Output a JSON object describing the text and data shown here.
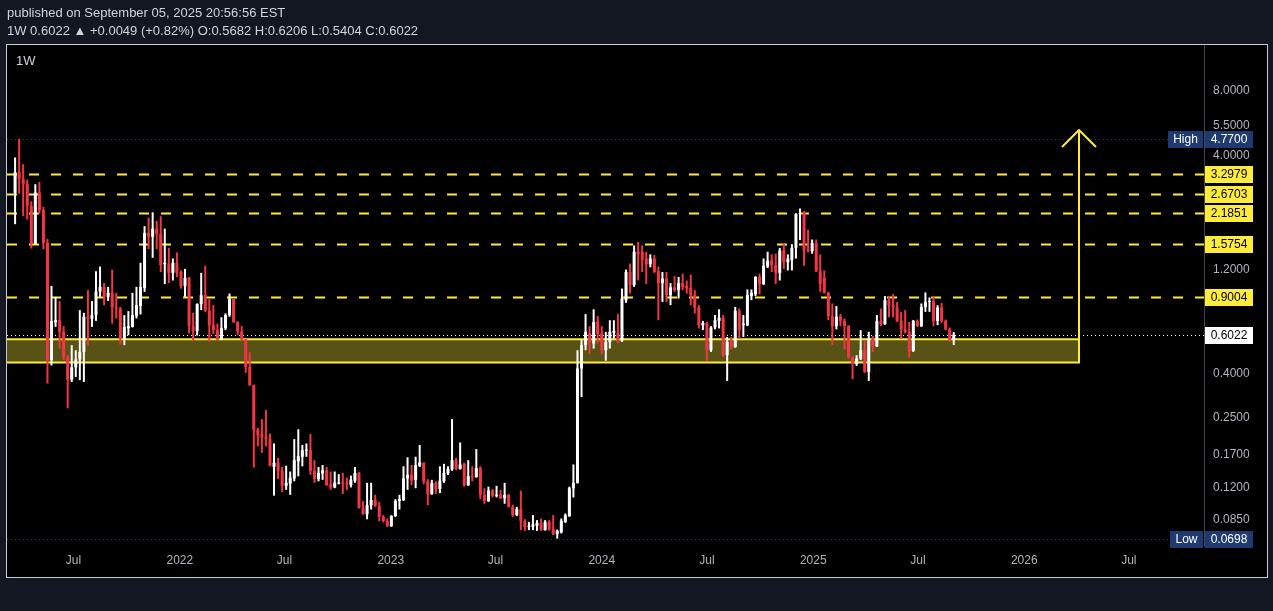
{
  "chart_data": {
    "type": "candlestick",
    "title": "1W",
    "subtitle": "1W 0.6022 ▲ +0.0049 (+0.82%) O:0.5682 H:0.6206 L:0.5404 C:0.6022",
    "annotations": [
      "published on September 05, 2025 20:56:56 EST",
      {
        "text": "High",
        "y": 4.77
      },
      {
        "text": "Low",
        "y": 0.0698
      }
    ],
    "x": [
      "2021-03-22",
      "2021-03-29",
      "2021-04-05",
      "2021-04-12",
      "2021-04-19",
      "2021-04-26",
      "2021-05-03",
      "2021-05-10",
      "2021-05-17",
      "2021-05-24",
      "2021-05-31",
      "2021-06-07",
      "2021-06-14",
      "2021-06-21",
      "2021-06-28",
      "2021-07-05",
      "2021-07-12",
      "2021-07-19",
      "2021-07-26",
      "2021-08-02",
      "2021-08-09",
      "2021-08-16",
      "2021-08-23",
      "2021-08-30",
      "2021-09-06",
      "2021-09-13",
      "2021-09-20",
      "2021-09-27",
      "2021-10-04",
      "2021-10-11",
      "2021-10-18",
      "2021-10-25",
      "2021-11-01",
      "2021-11-08",
      "2021-11-15",
      "2021-11-22",
      "2021-11-29",
      "2021-12-06",
      "2021-12-13",
      "2021-12-20",
      "2021-12-27",
      "2022-01-03",
      "2022-01-10",
      "2022-01-17",
      "2022-01-24",
      "2022-01-31",
      "2022-02-07",
      "2022-02-14",
      "2022-02-21",
      "2022-02-28",
      "2022-03-07",
      "2022-03-14",
      "2022-03-21",
      "2022-03-28",
      "2022-04-04",
      "2022-04-11",
      "2022-04-18",
      "2022-04-25",
      "2022-05-02",
      "2022-05-09",
      "2022-05-16",
      "2022-05-23",
      "2022-05-30",
      "2022-06-06",
      "2022-06-13",
      "2022-06-20",
      "2022-06-27",
      "2022-07-04",
      "2022-07-11",
      "2022-07-18",
      "2022-07-25",
      "2022-08-01",
      "2022-08-08",
      "2022-08-15",
      "2022-08-22",
      "2022-08-29",
      "2022-09-05",
      "2022-09-12",
      "2022-09-19",
      "2022-09-26",
      "2022-10-03",
      "2022-10-10",
      "2022-10-17",
      "2022-10-24",
      "2022-10-31",
      "2022-11-07",
      "2022-11-14",
      "2022-11-21",
      "2022-11-28",
      "2022-12-05",
      "2022-12-12",
      "2022-12-19",
      "2022-12-26",
      "2023-01-02",
      "2023-01-09",
      "2023-01-16",
      "2023-01-23",
      "2023-01-30",
      "2023-02-06",
      "2023-02-13",
      "2023-02-20",
      "2023-02-27",
      "2023-03-06",
      "2023-03-13",
      "2023-03-20",
      "2023-03-27",
      "2023-04-03",
      "2023-04-10",
      "2023-04-17",
      "2023-04-24",
      "2023-05-01",
      "2023-05-08",
      "2023-05-15",
      "2023-05-22",
      "2023-05-29",
      "2023-06-05",
      "2023-06-12",
      "2023-06-19",
      "2023-06-26",
      "2023-07-03",
      "2023-07-10",
      "2023-07-17",
      "2023-07-24",
      "2023-07-31",
      "2023-08-07",
      "2023-08-14",
      "2023-08-21",
      "2023-08-28",
      "2023-09-04",
      "2023-09-11",
      "2023-09-18",
      "2023-09-25",
      "2023-10-02",
      "2023-10-09",
      "2023-10-16",
      "2023-10-23",
      "2023-10-30",
      "2023-11-06",
      "2023-11-13",
      "2023-11-20",
      "2023-11-27",
      "2023-12-04",
      "2023-12-11",
      "2023-12-18",
      "2023-12-25",
      "2024-01-01",
      "2024-01-08",
      "2024-01-15",
      "2024-01-22",
      "2024-01-29",
      "2024-02-05",
      "2024-02-12",
      "2024-02-19",
      "2024-02-26",
      "2024-03-04",
      "2024-03-11",
      "2024-03-18",
      "2024-03-25",
      "2024-04-01",
      "2024-04-08",
      "2024-04-15",
      "2024-04-22",
      "2024-04-29",
      "2024-05-06",
      "2024-05-13",
      "2024-05-20",
      "2024-05-27",
      "2024-06-03",
      "2024-06-10",
      "2024-06-17",
      "2024-06-24",
      "2024-07-01",
      "2024-07-08",
      "2024-07-15",
      "2024-07-22",
      "2024-07-29",
      "2024-08-05",
      "2024-08-12",
      "2024-08-19",
      "2024-08-26",
      "2024-09-02",
      "2024-09-09",
      "2024-09-16",
      "2024-09-23",
      "2024-09-30",
      "2024-10-07",
      "2024-10-14",
      "2024-10-21",
      "2024-10-28",
      "2024-11-04",
      "2024-11-11",
      "2024-11-18",
      "2024-11-25",
      "2024-12-02",
      "2024-12-09",
      "2024-12-16",
      "2024-12-23",
      "2024-12-30",
      "2025-01-06",
      "2025-01-13",
      "2025-01-20",
      "2025-01-27",
      "2025-02-03",
      "2025-02-10",
      "2025-02-17",
      "2025-02-24",
      "2025-03-03",
      "2025-03-10",
      "2025-03-17",
      "2025-03-24",
      "2025-03-31",
      "2025-04-07",
      "2025-04-14",
      "2025-04-21",
      "2025-04-28",
      "2025-05-05",
      "2025-05-12",
      "2025-05-19",
      "2025-05-26",
      "2025-06-02",
      "2025-06-09",
      "2025-06-16",
      "2025-06-23",
      "2025-06-30",
      "2025-07-07",
      "2025-07-14",
      "2025-07-21",
      "2025-07-28",
      "2025-08-04",
      "2025-08-11",
      "2025-08-18",
      "2025-08-25",
      "2025-09-01"
    ],
    "ohlc": [
      [
        2.7,
        3.93,
        1.94,
        3.36
      ],
      [
        3.36,
        4.77,
        2.68,
        3.13
      ],
      [
        3.13,
        3.66,
        2.11,
        2.96
      ],
      [
        2.96,
        3.11,
        2.04,
        2.35
      ],
      [
        2.35,
        2.47,
        1.5,
        1.58
      ],
      [
        1.58,
        2.96,
        1.57,
        2.71
      ],
      [
        2.71,
        3.03,
        2.17,
        2.25
      ],
      [
        2.25,
        2.33,
        1.49,
        1.59
      ],
      [
        1.59,
        1.66,
        0.36,
        0.461
      ],
      [
        0.461,
        1.01,
        0.436,
        0.696
      ],
      [
        0.688,
        0.9,
        0.655,
        0.703
      ],
      [
        0.703,
        0.86,
        0.521,
        0.622
      ],
      [
        0.622,
        0.66,
        0.461,
        0.477
      ],
      [
        0.477,
        0.486,
        0.277,
        0.375
      ],
      [
        0.375,
        0.54,
        0.366,
        0.427
      ],
      [
        0.427,
        0.512,
        0.386,
        0.464
      ],
      [
        0.464,
        0.782,
        0.373,
        0.503
      ],
      [
        0.503,
        0.76,
        0.366,
        0.729
      ],
      [
        0.729,
        0.966,
        0.54,
        0.713
      ],
      [
        0.713,
        0.86,
        0.655,
        0.742
      ],
      [
        0.742,
        1.18,
        0.698,
        0.952
      ],
      [
        0.952,
        1.24,
        0.9,
        1.0
      ],
      [
        1.0,
        1.04,
        0.824,
        0.9
      ],
      [
        0.9,
        1.0,
        0.862,
        0.939
      ],
      [
        0.939,
        1.2,
        0.678,
        0.804
      ],
      [
        0.804,
        0.939,
        0.716,
        0.795
      ],
      [
        0.795,
        0.809,
        0.543,
        0.579
      ],
      [
        0.579,
        0.742,
        0.54,
        0.655
      ],
      [
        0.646,
        0.774,
        0.6,
        0.66
      ],
      [
        0.655,
        0.939,
        0.651,
        0.742
      ],
      [
        0.737,
        1.0,
        0.716,
        0.824
      ],
      [
        0.818,
        1.29,
        0.747,
        1.0
      ],
      [
        0.989,
        1.9,
        0.949,
        1.77
      ],
      [
        1.77,
        2.08,
        1.49,
        1.7
      ],
      [
        1.7,
        2.2,
        1.36,
        1.85
      ],
      [
        1.85,
        2.01,
        1.49,
        1.75
      ],
      [
        1.75,
        2.11,
        1.17,
        1.26
      ],
      [
        1.27,
        1.85,
        1.03,
        1.29
      ],
      [
        1.27,
        1.51,
        1.04,
        1.16
      ],
      [
        1.16,
        1.35,
        1.07,
        1.29
      ],
      [
        1.29,
        1.44,
        1.11,
        1.16
      ],
      [
        1.17,
        1.19,
        0.982,
        1.01
      ],
      [
        1.01,
        1.21,
        0.9,
        1.1
      ],
      [
        1.1,
        1.11,
        0.611,
        0.66
      ],
      [
        0.66,
        0.76,
        0.565,
        0.626
      ],
      [
        0.626,
        0.84,
        0.598,
        0.833
      ],
      [
        0.833,
        1.16,
        0.782,
        0.916
      ],
      [
        0.916,
        1.25,
        0.766,
        0.777
      ],
      [
        0.777,
        0.878,
        0.559,
        0.667
      ],
      [
        0.667,
        0.824,
        0.606,
        0.633
      ],
      [
        0.633,
        0.678,
        0.569,
        0.573
      ],
      [
        0.573,
        0.726,
        0.569,
        0.646
      ],
      [
        0.646,
        0.756,
        0.633,
        0.742
      ],
      [
        0.742,
        0.932,
        0.729,
        0.878
      ],
      [
        0.878,
        0.88,
        0.683,
        0.69
      ],
      [
        0.69,
        0.695,
        0.602,
        0.624
      ],
      [
        0.624,
        0.66,
        0.569,
        0.573
      ],
      [
        0.573,
        0.577,
        0.403,
        0.429
      ],
      [
        0.429,
        0.501,
        0.351,
        0.354
      ],
      [
        0.354,
        0.356,
        0.148,
        0.22
      ],
      [
        0.22,
        0.225,
        0.185,
        0.209
      ],
      [
        0.211,
        0.247,
        0.173,
        0.204
      ],
      [
        0.204,
        0.272,
        0.185,
        0.2
      ],
      [
        0.2,
        0.212,
        0.15,
        0.151
      ],
      [
        0.149,
        0.191,
        0.11,
        0.156
      ],
      [
        0.156,
        0.164,
        0.131,
        0.143
      ],
      [
        0.143,
        0.149,
        0.114,
        0.122
      ],
      [
        0.122,
        0.151,
        0.117,
        0.126
      ],
      [
        0.125,
        0.142,
        0.111,
        0.133
      ],
      [
        0.132,
        0.2,
        0.128,
        0.16
      ],
      [
        0.158,
        0.222,
        0.135,
        0.167
      ],
      [
        0.166,
        0.188,
        0.15,
        0.178
      ],
      [
        0.177,
        0.191,
        0.166,
        0.178
      ],
      [
        0.178,
        0.211,
        0.137,
        0.143
      ],
      [
        0.143,
        0.16,
        0.126,
        0.131
      ],
      [
        0.131,
        0.149,
        0.128,
        0.14
      ],
      [
        0.139,
        0.152,
        0.13,
        0.144
      ],
      [
        0.144,
        0.149,
        0.122,
        0.123
      ],
      [
        0.124,
        0.142,
        0.117,
        0.12
      ],
      [
        0.12,
        0.142,
        0.119,
        0.126
      ],
      [
        0.125,
        0.138,
        0.124,
        0.126
      ],
      [
        0.126,
        0.14,
        0.112,
        0.125
      ],
      [
        0.125,
        0.133,
        0.117,
        0.124
      ],
      [
        0.123,
        0.136,
        0.12,
        0.13
      ],
      [
        0.129,
        0.149,
        0.126,
        0.14
      ],
      [
        0.14,
        0.141,
        0.096,
        0.0967
      ],
      [
        0.0967,
        0.104,
        0.09,
        0.0904
      ],
      [
        0.0904,
        0.126,
        0.0857,
        0.0995
      ],
      [
        0.0995,
        0.126,
        0.095,
        0.105
      ],
      [
        0.105,
        0.111,
        0.0977,
        0.0985
      ],
      [
        0.0985,
        0.103,
        0.084,
        0.0879
      ],
      [
        0.0879,
        0.0895,
        0.0829,
        0.084
      ],
      [
        0.084,
        0.0864,
        0.0791,
        0.0797
      ],
      [
        0.0797,
        0.0895,
        0.0791,
        0.0886
      ],
      [
        0.0886,
        0.106,
        0.0879,
        0.104
      ],
      [
        0.104,
        0.111,
        0.095,
        0.106
      ],
      [
        0.105,
        0.15,
        0.104,
        0.132
      ],
      [
        0.132,
        0.165,
        0.117,
        0.137
      ],
      [
        0.137,
        0.152,
        0.123,
        0.129
      ],
      [
        0.13,
        0.166,
        0.119,
        0.152
      ],
      [
        0.151,
        0.188,
        0.149,
        0.156
      ],
      [
        0.156,
        0.156,
        0.124,
        0.128
      ],
      [
        0.128,
        0.131,
        0.0995,
        0.112
      ],
      [
        0.112,
        0.13,
        0.111,
        0.126
      ],
      [
        0.126,
        0.128,
        0.112,
        0.118
      ],
      [
        0.118,
        0.15,
        0.113,
        0.129
      ],
      [
        0.128,
        0.154,
        0.126,
        0.14
      ],
      [
        0.139,
        0.15,
        0.137,
        0.146
      ],
      [
        0.145,
        0.247,
        0.143,
        0.16
      ],
      [
        0.16,
        0.164,
        0.144,
        0.146
      ],
      [
        0.146,
        0.193,
        0.145,
        0.153
      ],
      [
        0.154,
        0.156,
        0.121,
        0.123
      ],
      [
        0.123,
        0.16,
        0.122,
        0.135
      ],
      [
        0.135,
        0.15,
        0.128,
        0.134
      ],
      [
        0.134,
        0.18,
        0.133,
        0.147
      ],
      [
        0.147,
        0.15,
        0.106,
        0.111
      ],
      [
        0.111,
        0.119,
        0.101,
        0.104
      ],
      [
        0.104,
        0.121,
        0.103,
        0.116
      ],
      [
        0.116,
        0.118,
        0.108,
        0.11
      ],
      [
        0.11,
        0.122,
        0.108,
        0.111
      ],
      [
        0.111,
        0.117,
        0.106,
        0.107
      ],
      [
        0.107,
        0.126,
        0.101,
        0.111
      ],
      [
        0.111,
        0.112,
        0.0971,
        0.0977
      ],
      [
        0.0977,
        0.1,
        0.0879,
        0.0895
      ],
      [
        0.0895,
        0.0977,
        0.0886,
        0.0953
      ],
      [
        0.0953,
        0.116,
        0.0764,
        0.0843
      ],
      [
        0.0843,
        0.0858,
        0.0758,
        0.0791
      ],
      [
        0.0791,
        0.0834,
        0.0764,
        0.0799
      ],
      [
        0.0793,
        0.0895,
        0.0764,
        0.0813
      ],
      [
        0.08,
        0.0849,
        0.0758,
        0.0825
      ],
      [
        0.0825,
        0.0864,
        0.076,
        0.0764
      ],
      [
        0.0764,
        0.0849,
        0.076,
        0.0834
      ],
      [
        0.0834,
        0.0849,
        0.076,
        0.0769
      ],
      [
        0.0775,
        0.0895,
        0.0725,
        0.0732
      ],
      [
        0.0732,
        0.0769,
        0.0698,
        0.0758
      ],
      [
        0.0746,
        0.0864,
        0.0738,
        0.0843
      ],
      [
        0.0834,
        0.0911,
        0.0825,
        0.0895
      ],
      [
        0.0886,
        0.121,
        0.0879,
        0.119
      ],
      [
        0.119,
        0.153,
        0.108,
        0.126
      ],
      [
        0.126,
        0.512,
        0.125,
        0.422
      ],
      [
        0.422,
        0.57,
        0.312,
        0.54
      ],
      [
        0.54,
        0.75,
        0.512,
        0.622
      ],
      [
        0.611,
        0.66,
        0.494,
        0.553
      ],
      [
        0.55,
        0.789,
        0.521,
        0.69
      ],
      [
        0.696,
        0.734,
        0.55,
        0.606
      ],
      [
        0.611,
        0.66,
        0.49,
        0.512
      ],
      [
        0.512,
        0.622,
        0.458,
        0.559
      ],
      [
        0.559,
        0.703,
        0.521,
        0.622
      ],
      [
        0.616,
        0.703,
        0.579,
        0.629
      ],
      [
        0.616,
        0.75,
        0.553,
        0.565
      ],
      [
        0.565,
        0.982,
        0.559,
        0.884
      ],
      [
        0.869,
        1.2,
        0.845,
        1.17
      ],
      [
        1.17,
        1.28,
        0.932,
        1.02
      ],
      [
        1.02,
        1.55,
        1.0,
        1.45
      ],
      [
        1.45,
        1.61,
        1.07,
        1.41
      ],
      [
        1.45,
        1.55,
        1.17,
        1.33
      ],
      [
        1.35,
        1.45,
        1.03,
        1.27
      ],
      [
        1.27,
        1.41,
        1.23,
        1.35
      ],
      [
        1.35,
        1.4,
        1.16,
        1.17
      ],
      [
        1.18,
        1.24,
        0.703,
        1.04
      ],
      [
        1.04,
        1.17,
        0.853,
        1.09
      ],
      [
        1.09,
        1.17,
        0.853,
        0.916
      ],
      [
        0.916,
        1.04,
        0.824,
        0.994
      ],
      [
        0.994,
        1.12,
        0.949,
        0.966
      ],
      [
        0.966,
        1.11,
        0.884,
        1.04
      ],
      [
        1.04,
        1.15,
        0.966,
        1.0
      ],
      [
        1.01,
        1.07,
        0.932,
        0.982
      ],
      [
        0.99,
        1.14,
        0.824,
        0.916
      ],
      [
        0.916,
        0.966,
        0.755,
        0.804
      ],
      [
        0.804,
        0.824,
        0.644,
        0.667
      ],
      [
        0.667,
        0.698,
        0.633,
        0.683
      ],
      [
        0.683,
        0.69,
        0.458,
        0.512
      ],
      [
        0.512,
        0.66,
        0.503,
        0.651
      ],
      [
        0.651,
        0.742,
        0.638,
        0.703
      ],
      [
        0.698,
        0.789,
        0.644,
        0.722
      ],
      [
        0.722,
        0.742,
        0.477,
        0.486
      ],
      [
        0.486,
        0.589,
        0.37,
        0.559
      ],
      [
        0.559,
        0.589,
        0.516,
        0.53
      ],
      [
        0.53,
        0.809,
        0.525,
        0.777
      ],
      [
        0.777,
        0.795,
        0.579,
        0.633
      ],
      [
        0.667,
        0.742,
        0.589,
        0.678
      ],
      [
        0.667,
        0.973,
        0.66,
        0.916
      ],
      [
        0.907,
        0.973,
        0.869,
        0.939
      ],
      [
        0.926,
        1.12,
        0.907,
        1.11
      ],
      [
        1.11,
        1.15,
        0.926,
        1.03
      ],
      [
        1.03,
        1.35,
        1.02,
        1.25
      ],
      [
        1.24,
        1.45,
        1.22,
        1.32
      ],
      [
        1.32,
        1.41,
        1.17,
        1.26
      ],
      [
        1.26,
        1.42,
        1.03,
        1.16
      ],
      [
        1.16,
        1.51,
        1.07,
        1.47
      ],
      [
        1.47,
        1.59,
        1.21,
        1.3
      ],
      [
        1.3,
        1.41,
        1.19,
        1.35
      ],
      [
        1.33,
        1.57,
        1.19,
        1.51
      ],
      [
        1.51,
        2.18,
        1.35,
        2.16
      ],
      [
        2.16,
        2.29,
        1.64,
        2.18
      ],
      [
        2.2,
        2.23,
        1.25,
        1.47
      ],
      [
        1.47,
        1.83,
        1.44,
        1.46
      ],
      [
        1.46,
        1.65,
        1.42,
        1.59
      ],
      [
        1.59,
        1.65,
        1.17,
        1.18
      ],
      [
        1.18,
        1.41,
        0.949,
        1.03
      ],
      [
        1.1,
        1.19,
        0.932,
        0.939
      ],
      [
        0.939,
        0.95,
        0.703,
        0.734
      ],
      [
        0.734,
        0.839,
        0.54,
        0.66
      ],
      [
        0.66,
        0.816,
        0.638,
        0.729
      ],
      [
        0.729,
        0.75,
        0.66,
        0.698
      ],
      [
        0.698,
        0.716,
        0.516,
        0.66
      ],
      [
        0.66,
        0.667,
        0.469,
        0.474
      ],
      [
        0.474,
        0.481,
        0.377,
        0.442
      ],
      [
        0.442,
        0.486,
        0.434,
        0.469
      ],
      [
        0.469,
        0.633,
        0.461,
        0.512
      ],
      [
        0.512,
        0.569,
        0.403,
        0.406
      ],
      [
        0.406,
        0.622,
        0.37,
        0.579
      ],
      [
        0.579,
        0.594,
        0.503,
        0.534
      ],
      [
        0.534,
        0.742,
        0.53,
        0.696
      ],
      [
        0.696,
        0.795,
        0.66,
        0.674
      ],
      [
        0.674,
        0.907,
        0.67,
        0.869
      ],
      [
        0.869,
        0.907,
        0.725,
        0.824
      ],
      [
        0.824,
        0.926,
        0.725,
        0.804
      ],
      [
        0.804,
        0.853,
        0.69,
        0.698
      ],
      [
        0.698,
        0.768,
        0.579,
        0.638
      ],
      [
        0.638,
        0.782,
        0.611,
        0.622
      ],
      [
        0.622,
        0.69,
        0.474,
        0.508
      ],
      [
        0.508,
        0.705,
        0.503,
        0.698
      ],
      [
        0.698,
        0.708,
        0.655,
        0.66
      ],
      [
        0.66,
        0.839,
        0.655,
        0.809
      ],
      [
        0.809,
        0.943,
        0.768,
        0.853
      ],
      [
        0.853,
        0.894,
        0.768,
        0.86
      ],
      [
        0.86,
        0.907,
        0.66,
        0.698
      ],
      [
        0.698,
        0.824,
        0.667,
        0.804
      ],
      [
        0.804,
        0.845,
        0.683,
        0.698
      ],
      [
        0.698,
        0.708,
        0.633,
        0.638
      ],
      [
        0.638,
        0.651,
        0.559,
        0.568
      ],
      [
        0.5682,
        0.6206,
        0.5404,
        0.6022
      ]
    ],
    "colors": [
      "#ffffff",
      "#f23645",
      "#f23645",
      "#f23645",
      "#f23645",
      "#ffffff",
      "#f23645",
      "#f23645",
      "#f23645",
      "#ffffff",
      "#ffffff",
      "#f23645",
      "#f23645",
      "#f23645",
      "#ffffff",
      "#ffffff",
      "#ffffff",
      "#ffffff",
      "#f23645",
      "#ffffff",
      "#ffffff",
      "#ffffff",
      "#f23645",
      "#ffffff",
      "#f23645",
      "#f23645",
      "#f23645",
      "#ffffff",
      "#ffffff",
      "#ffffff",
      "#ffffff",
      "#ffffff",
      "#ffffff",
      "#f23645",
      "#ffffff",
      "#f23645",
      "#f23645",
      "#ffffff",
      "#f23645",
      "#ffffff",
      "#f23645",
      "#f23645",
      "#ffffff",
      "#f23645",
      "#f23645",
      "#ffffff",
      "#ffffff",
      "#f23645",
      "#f23645",
      "#f23645",
      "#f23645",
      "#ffffff",
      "#ffffff",
      "#ffffff",
      "#f23645",
      "#f23645",
      "#f23645",
      "#f23645",
      "#f23645",
      "#f23645",
      "#f23645",
      "#f23645",
      "#f23645",
      "#f23645",
      "#ffffff",
      "#f23645",
      "#f23645",
      "#ffffff",
      "#ffffff",
      "#ffffff",
      "#ffffff",
      "#ffffff",
      "#ffffff",
      "#f23645",
      "#f23645",
      "#ffffff",
      "#ffffff",
      "#f23645",
      "#f23645",
      "#ffffff",
      "#ffffff",
      "#f23645",
      "#f23645",
      "#ffffff",
      "#ffffff",
      "#f23645",
      "#f23645",
      "#ffffff",
      "#ffffff",
      "#f23645",
      "#f23645",
      "#f23645",
      "#f23645",
      "#ffffff",
      "#ffffff",
      "#ffffff",
      "#ffffff",
      "#ffffff",
      "#f23645",
      "#ffffff",
      "#ffffff",
      "#f23645",
      "#f23645",
      "#ffffff",
      "#f23645",
      "#ffffff",
      "#ffffff",
      "#ffffff",
      "#ffffff",
      "#f23645",
      "#ffffff",
      "#f23645",
      "#ffffff",
      "#f23645",
      "#ffffff",
      "#f23645",
      "#f23645",
      "#ffffff",
      "#f23645",
      "#ffffff",
      "#f23645",
      "#ffffff",
      "#f23645",
      "#f23645",
      "#ffffff",
      "#f23645",
      "#f23645",
      "#ffffff",
      "#ffffff",
      "#ffffff",
      "#f23645",
      "#ffffff",
      "#f23645",
      "#f23645",
      "#ffffff",
      "#ffffff",
      "#ffffff",
      "#ffffff",
      "#ffffff",
      "#ffffff",
      "#ffffff",
      "#ffffff",
      "#f23645",
      "#ffffff",
      "#f23645",
      "#f23645",
      "#ffffff",
      "#ffffff",
      "#ffffff",
      "#f23645",
      "#ffffff",
      "#ffffff",
      "#f23645",
      "#ffffff",
      "#f23645",
      "#f23645",
      "#f23645",
      "#ffffff",
      "#f23645",
      "#f23645",
      "#ffffff",
      "#f23645",
      "#ffffff",
      "#f23645",
      "#ffffff",
      "#f23645",
      "#f23645",
      "#f23645",
      "#f23645",
      "#f23645",
      "#ffffff",
      "#f23645",
      "#ffffff",
      "#ffffff",
      "#ffffff",
      "#f23645",
      "#ffffff",
      "#f23645",
      "#ffffff",
      "#f23645",
      "#ffffff",
      "#ffffff",
      "#ffffff",
      "#ffffff",
      "#f23645",
      "#ffffff",
      "#ffffff",
      "#f23645",
      "#f23645",
      "#ffffff",
      "#f23645",
      "#ffffff",
      "#ffffff",
      "#ffffff",
      "#ffffff",
      "#f23645",
      "#f23645",
      "#ffffff",
      "#f23645",
      "#f23645",
      "#f23645",
      "#f23645",
      "#f23645",
      "#ffffff",
      "#f23645",
      "#f23645",
      "#f23645",
      "#f23645",
      "#ffffff",
      "#ffffff",
      "#f23645",
      "#ffffff",
      "#f23645",
      "#ffffff",
      "#f23645",
      "#ffffff",
      "#f23645",
      "#f23645",
      "#f23645",
      "#f23645",
      "#f23645",
      "#f23645",
      "#ffffff",
      "#f23645",
      "#ffffff",
      "#ffffff",
      "#ffffff",
      "#f23645",
      "#ffffff",
      "#f23645",
      "#f23645",
      "#f23645",
      "#ffffff"
    ],
    "xlim": [
      "2021-03-08",
      "2026-11-08"
    ],
    "ylim": [
      0.0646,
      12.9
    ],
    "log": true,
    "xticks": [
      {
        "value": "2021-07",
        "label": "Jul"
      },
      {
        "value": "2022",
        "label": "2022"
      },
      {
        "value": "2022-07",
        "label": "Jul"
      },
      {
        "value": "2023",
        "label": "2023"
      },
      {
        "value": "2023-07",
        "label": "Jul"
      },
      {
        "value": "2024",
        "label": "2024"
      },
      {
        "value": "2024-07",
        "label": "Jul"
      },
      {
        "value": "2025",
        "label": "2025"
      },
      {
        "value": "2025-07",
        "label": "Jul"
      },
      {
        "value": "2026",
        "label": "2026"
      },
      {
        "value": "2026-07",
        "label": "Jul"
      }
    ],
    "yticks": [
      {
        "value": 8,
        "label": "8.0000"
      },
      {
        "value": 5.5,
        "label": "5.5000"
      },
      {
        "value": 4,
        "label": "4.0000"
      },
      {
        "value": 1.2,
        "label": "1.2000"
      },
      {
        "value": 0.4,
        "label": "0.4000"
      },
      {
        "value": 0.25,
        "label": "0.2500"
      },
      {
        "value": 0.17,
        "label": "0.1700"
      },
      {
        "value": 0.12,
        "label": "0.1200"
      },
      {
        "value": 0.085,
        "label": "0.0850"
      }
    ],
    "ref_lines": [
      {
        "axis": "y",
        "value": 4.77,
        "label": "4.7700",
        "color": "#1e3a70",
        "line_style": "dotted"
      },
      {
        "axis": "y",
        "value": 3.2979,
        "label": "3.2979",
        "color": "#ffeb3b",
        "line_style": "dashed"
      },
      {
        "axis": "y",
        "value": 2.6703,
        "label": "2.6703",
        "color": "#ffeb3b",
        "line_style": "dashed"
      },
      {
        "axis": "y",
        "value": 2.1851,
        "label": "2.1851",
        "color": "#ffeb3b",
        "line_style": "dashed"
      },
      {
        "axis": "y",
        "value": 1.5754,
        "label": "1.5754",
        "color": "#ffeb3b",
        "line_style": "dashed"
      },
      {
        "axis": "y",
        "value": 0.9004,
        "label": "0.9004",
        "color": "#ffeb3b",
        "line_style": "dashed"
      },
      {
        "axis": "y",
        "value": 0.6022,
        "label": "0.6022",
        "color": "#ffffff",
        "line_style": "dotted"
      },
      {
        "axis": "y",
        "value": 0.0698,
        "label": "0.0698",
        "color": "#1e3a70",
        "line_style": "dotted"
      }
    ],
    "bands": [
      {
        "axis": "y",
        "from": 0.45,
        "to": 0.575,
        "color": "#ffeb3b"
      }
    ]
  }
}
